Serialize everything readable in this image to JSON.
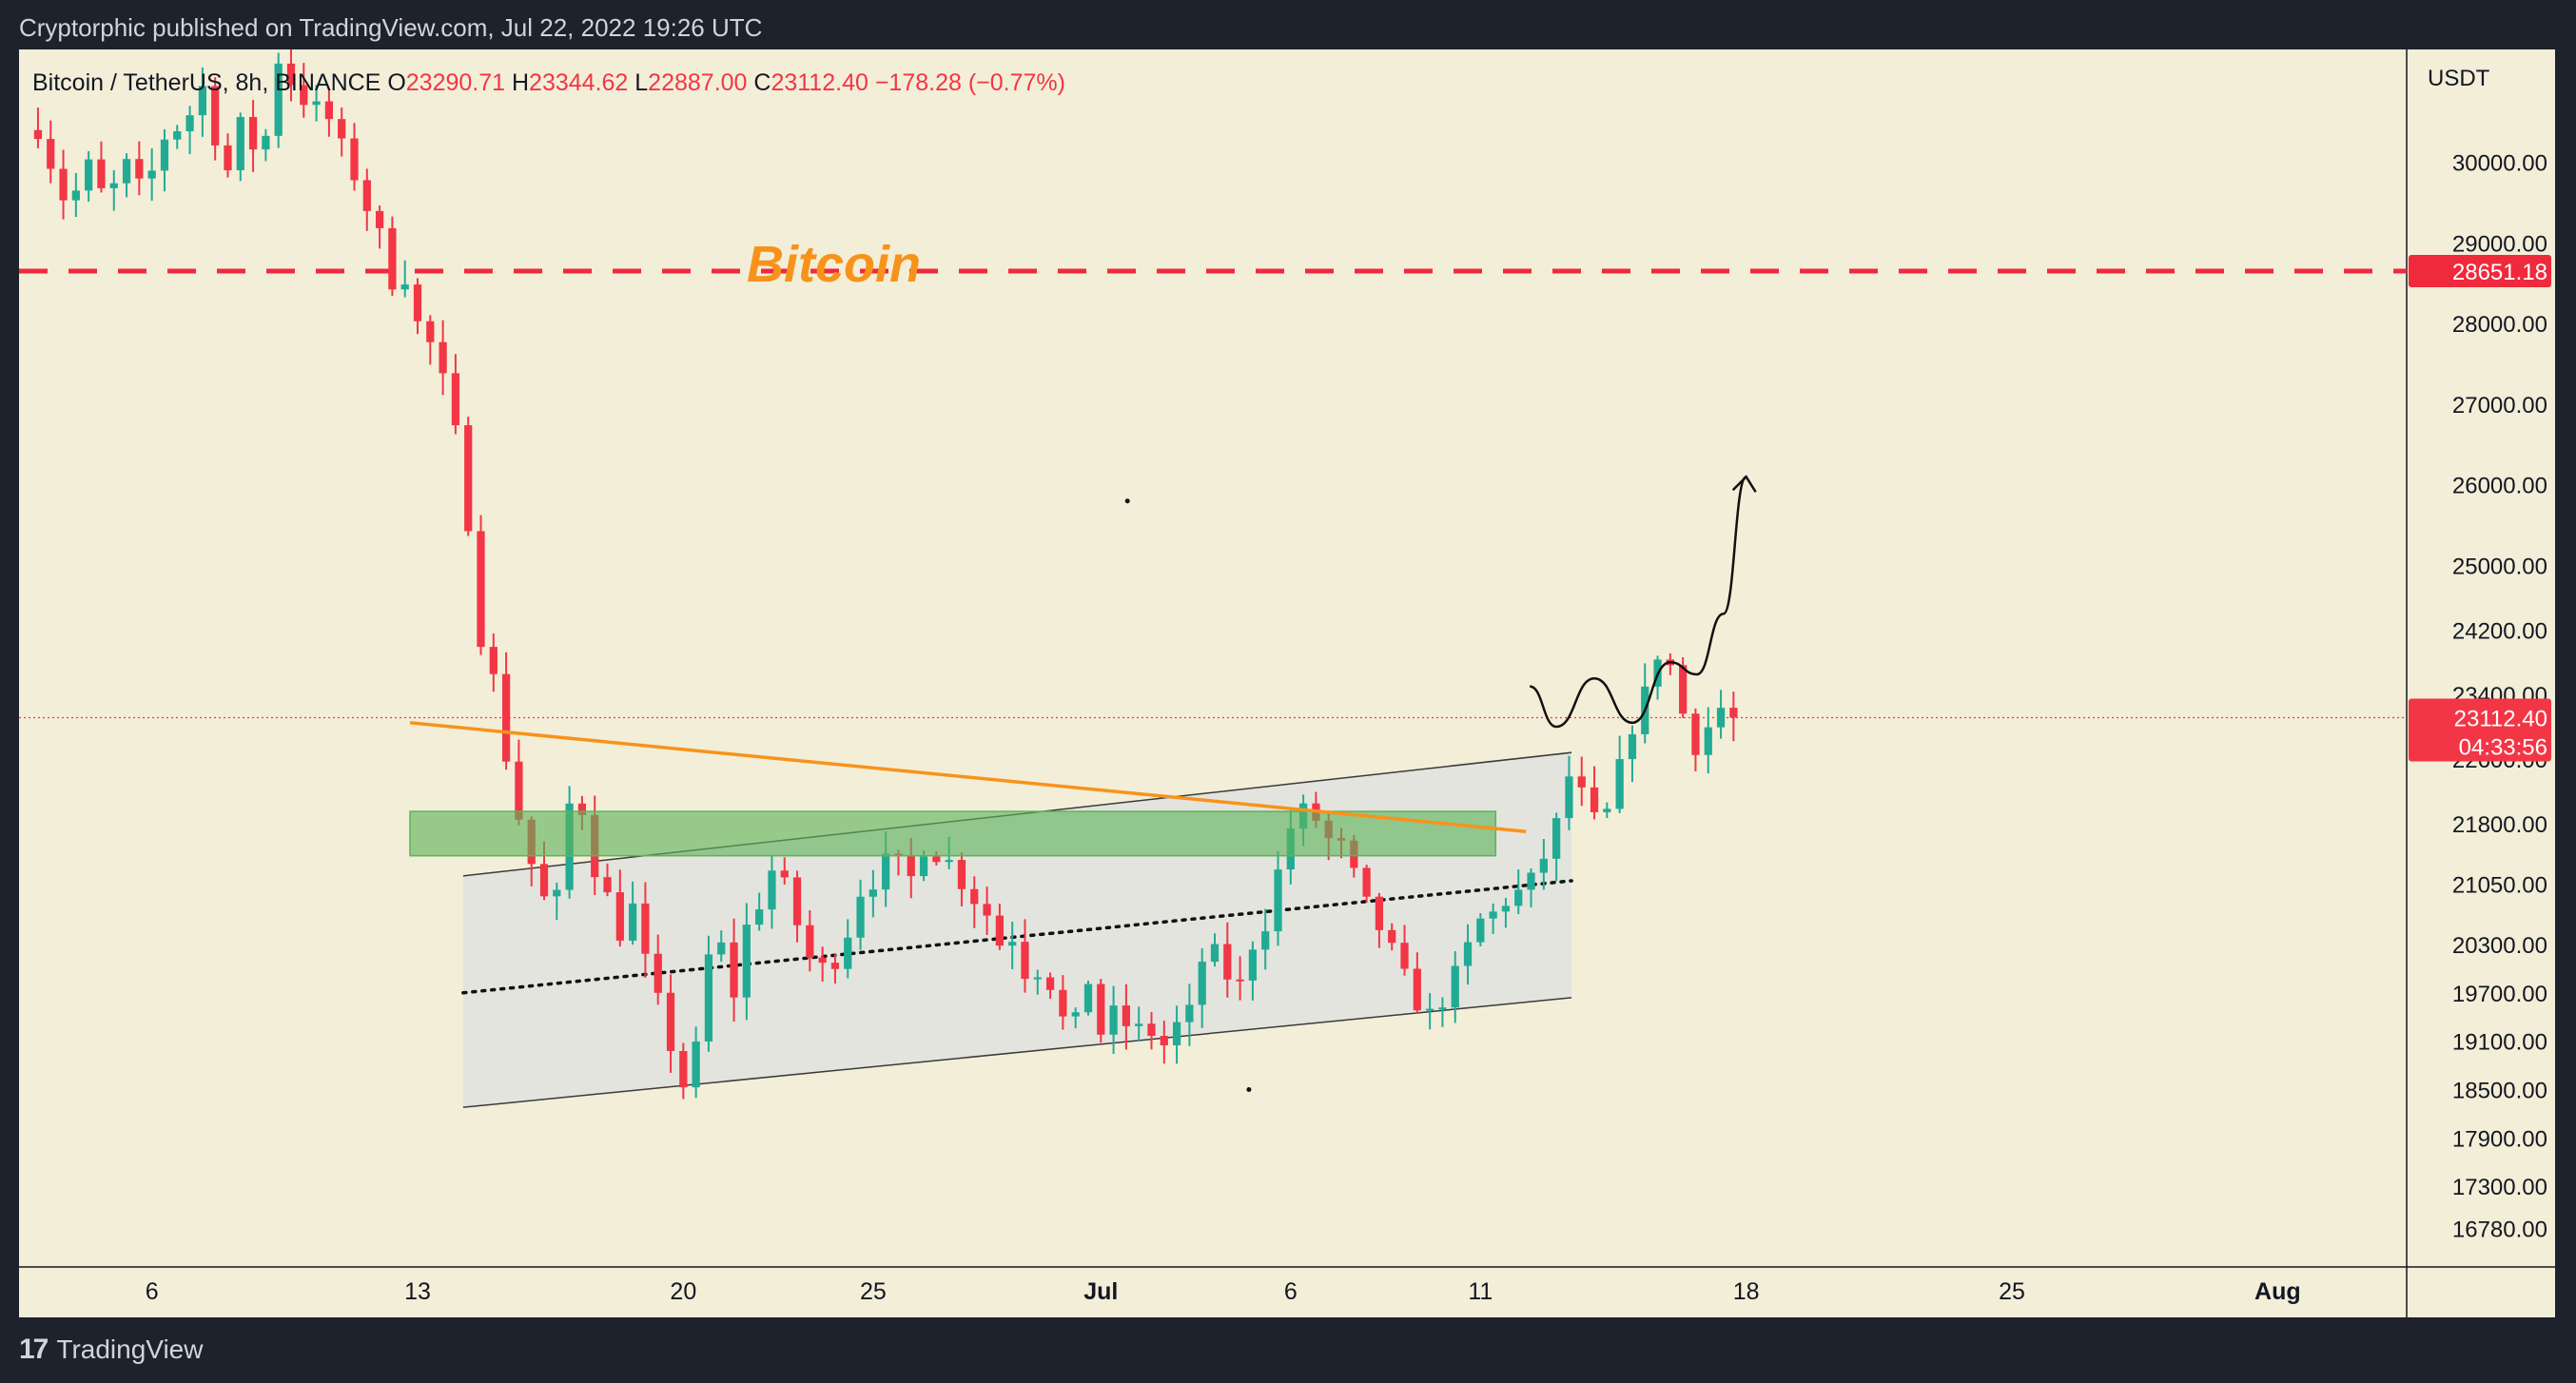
{
  "header": {
    "published": "Cryptorphic published on TradingView.com, Jul 22, 2022 19:26 UTC",
    "symbol": "Bitcoin / TetherUS, 8h, BINANCE",
    "o_label": "O",
    "o": "23290.71",
    "h_label": "H",
    "h": "23344.62",
    "l_label": "L",
    "l": "22887.00",
    "c_label": "C",
    "c": "23112.40",
    "change": "−178.28 (−0.77%)"
  },
  "footer": {
    "logo_mark": "17",
    "logo_text": "TradingView"
  },
  "colors": {
    "frame": "#1e222d",
    "plot_bg": "#f3eed8",
    "up": "#22ab94",
    "down": "#f23645",
    "axis_text": "#131722",
    "annotation_text": "#f7931a",
    "trendline": "#f7931a",
    "zone": "#5db35a",
    "channel_fill": "#e4e4de",
    "resistance": "#ef2a3c"
  },
  "chart_data": {
    "type": "candlestick",
    "title": "Bitcoin",
    "symbol": "Bitcoin / TetherUS",
    "interval": "8h",
    "exchange": "BINANCE",
    "currency_label": "USDT",
    "grid": false,
    "x_start_day": "2022-06-03",
    "x_tick_labels": [
      {
        "label": "6",
        "day": 3
      },
      {
        "label": "13",
        "day": 10
      },
      {
        "label": "20",
        "day": 17
      },
      {
        "label": "25",
        "day": 22
      },
      {
        "label": "Jul",
        "day": 28
      },
      {
        "label": "6",
        "day": 33
      },
      {
        "label": "11",
        "day": 38
      },
      {
        "label": "18",
        "day": 45
      },
      {
        "label": "25",
        "day": 52
      },
      {
        "label": "Aug",
        "day": 59
      }
    ],
    "x_range_days": [
      -0.5,
      62.4
    ],
    "y_range": [
      16300,
      31400
    ],
    "y_tick_labels": [
      30000,
      29000,
      28000,
      27000,
      26000,
      25000,
      24200,
      23400,
      22600,
      21800,
      21050,
      20300,
      19700,
      19100,
      18500,
      17900,
      17300,
      16780
    ],
    "y_tick_text": [
      "30000.00",
      "29000.00",
      "28000.00",
      "27000.00",
      "26000.00",
      "25000.00",
      "24200.00",
      "23400.00",
      "22600.00",
      "21800.00",
      "21050.00",
      "20300.00",
      "19700.00",
      "19100.00",
      "18500.00",
      "17900.00",
      "17300.00",
      "16780.00"
    ],
    "resistance": {
      "value": 28651.18,
      "label": "28651.18"
    },
    "last_price": {
      "value": 23112.4,
      "label": "23112.40",
      "countdown": "04:33:56"
    },
    "annotation": "Bitcoin",
    "close_anchors": [
      [
        0,
        30400
      ],
      [
        0.8,
        29400
      ],
      [
        1.3,
        30000
      ],
      [
        1.8,
        29500
      ],
      [
        2.3,
        30000
      ],
      [
        2.8,
        29600
      ],
      [
        3.3,
        30300
      ],
      [
        3.9,
        30500
      ],
      [
        4.4,
        31000
      ],
      [
        4.9,
        29700
      ],
      [
        5.3,
        30500
      ],
      [
        5.9,
        30000
      ],
      [
        6.3,
        31300
      ],
      [
        6.9,
        30800
      ],
      [
        7.6,
        30600
      ],
      [
        8.2,
        30000
      ],
      [
        8.6,
        29500
      ],
      [
        9.0,
        29100
      ],
      [
        9.4,
        28400
      ],
      [
        9.7,
        28600
      ],
      [
        10.0,
        28000
      ],
      [
        10.4,
        27700
      ],
      [
        10.8,
        27100
      ],
      [
        11.2,
        26200
      ],
      [
        11.6,
        24200
      ],
      [
        12.0,
        23600
      ],
      [
        12.3,
        22700
      ],
      [
        12.7,
        21800
      ],
      [
        13.0,
        21300
      ],
      [
        13.3,
        20900
      ],
      [
        13.6,
        20600
      ],
      [
        13.9,
        21900
      ],
      [
        14.2,
        22300
      ],
      [
        14.6,
        21300
      ],
      [
        15.0,
        20900
      ],
      [
        15.3,
        20400
      ],
      [
        15.7,
        20800
      ],
      [
        16.0,
        20100
      ],
      [
        16.4,
        19500
      ],
      [
        16.8,
        18800
      ],
      [
        17.2,
        18300
      ],
      [
        17.5,
        19900
      ],
      [
        17.9,
        20500
      ],
      [
        18.3,
        19600
      ],
      [
        18.7,
        20600
      ],
      [
        19.0,
        20800
      ],
      [
        19.4,
        21300
      ],
      [
        19.8,
        20900
      ],
      [
        20.2,
        20200
      ],
      [
        20.6,
        20000
      ],
      [
        21.0,
        20100
      ],
      [
        21.3,
        20400
      ],
      [
        21.7,
        21000
      ],
      [
        22.1,
        21100
      ],
      [
        22.5,
        21500
      ],
      [
        22.9,
        21000
      ],
      [
        23.3,
        21500
      ],
      [
        23.7,
        21400
      ],
      [
        24.1,
        21300
      ],
      [
        24.5,
        20900
      ],
      [
        24.9,
        20800
      ],
      [
        25.3,
        20300
      ],
      [
        25.7,
        20400
      ],
      [
        26.1,
        19800
      ],
      [
        26.5,
        20100
      ],
      [
        26.9,
        19400
      ],
      [
        27.3,
        19300
      ],
      [
        27.7,
        19900
      ],
      [
        28.0,
        19200
      ],
      [
        28.4,
        19500
      ],
      [
        28.8,
        19200
      ],
      [
        29.2,
        19300
      ],
      [
        29.6,
        19000
      ],
      [
        30.0,
        19300
      ],
      [
        30.4,
        19500
      ],
      [
        30.8,
        20400
      ],
      [
        31.2,
        20000
      ],
      [
        31.6,
        19700
      ],
      [
        32.0,
        20300
      ],
      [
        32.4,
        20600
      ],
      [
        32.8,
        21500
      ],
      [
        33.2,
        22000
      ],
      [
        33.6,
        21900
      ],
      [
        34.0,
        21600
      ],
      [
        34.4,
        21500
      ],
      [
        34.8,
        21000
      ],
      [
        35.2,
        20600
      ],
      [
        35.6,
        20300
      ],
      [
        36.0,
        19900
      ],
      [
        36.4,
        19500
      ],
      [
        36.8,
        19400
      ],
      [
        37.2,
        19800
      ],
      [
        37.6,
        20200
      ],
      [
        38.0,
        20600
      ],
      [
        38.4,
        20700
      ],
      [
        38.8,
        20900
      ],
      [
        39.2,
        21000
      ],
      [
        39.6,
        21300
      ],
      [
        40.0,
        21800
      ],
      [
        40.4,
        22500
      ],
      [
        40.8,
        22000
      ],
      [
        41.2,
        21700
      ],
      [
        41.6,
        22400
      ],
      [
        42.0,
        23000
      ],
      [
        42.4,
        23500
      ],
      [
        42.8,
        24100
      ],
      [
        43.2,
        23400
      ],
      [
        43.6,
        22700
      ],
      [
        44.0,
        23000
      ],
      [
        44.4,
        23280
      ],
      [
        44.6,
        23112
      ]
    ],
    "candle_days": [
      0,
      44.6
    ],
    "candles_per_day": 3,
    "seed": 7,
    "channel": {
      "upper": [
        [
          11.2,
          21150
        ],
        [
          40.4,
          22680
        ]
      ],
      "lower": [
        [
          11.2,
          18280
        ],
        [
          40.4,
          19640
        ]
      ],
      "fill_to_day": 40.4
    },
    "midline": [
      [
        11.2,
        19700
      ],
      [
        40.4,
        21090
      ]
    ],
    "trendline": [
      [
        9.8,
        23050
      ],
      [
        39.2,
        21700
      ]
    ],
    "zone": {
      "day_from": 9.8,
      "day_to": 38.4,
      "top": 21950,
      "bottom": 21400
    },
    "projection": [
      [
        39.3,
        23500
      ],
      [
        40.0,
        23000
      ],
      [
        41.0,
        23600
      ],
      [
        42.0,
        23050
      ],
      [
        43.0,
        23800
      ],
      [
        43.7,
        23650
      ],
      [
        44.4,
        24400
      ],
      [
        45.0,
        26100
      ]
    ],
    "dots": [
      [
        28.7,
        25800
      ],
      [
        31.9,
        18500
      ]
    ]
  }
}
